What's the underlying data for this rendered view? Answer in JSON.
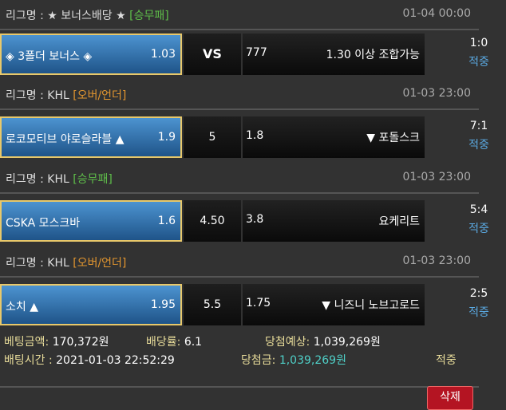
{
  "league_label": "리그명 :",
  "bets": [
    {
      "league": "★ 보너스배당 ★",
      "type": "[승무패]",
      "type_color": "green",
      "date": "01-04 00:00",
      "home": "◈ 3폴더 보너스 ◈",
      "home_odds": "1.03",
      "mid": "VS",
      "away_odds": "777",
      "away": "1.30 이상 조합가능",
      "score": "1:0",
      "result": "적중"
    },
    {
      "league": "KHL",
      "type": "[오버/언더]",
      "type_color": "orange",
      "date": "01-03 23:00",
      "home": "로코모티브 야로슬라블 ▲",
      "home_odds": "1.9",
      "mid": "5",
      "away_odds": "1.8",
      "away": "▼ 포돌스크",
      "score": "7:1",
      "result": "적중"
    },
    {
      "league": "KHL",
      "type": "[승무패]",
      "type_color": "green",
      "date": "01-03 23:00",
      "home": "CSKA 모스크바",
      "home_odds": "1.6",
      "mid": "4.50",
      "away_odds": "3.8",
      "away": "요케리트",
      "score": "5:4",
      "result": "적중"
    },
    {
      "league": "KHL",
      "type": "[오버/언더]",
      "type_color": "orange",
      "date": "01-03 23:00",
      "home": "소치 ▲",
      "home_odds": "1.95",
      "mid": "5.5",
      "away_odds": "1.75",
      "away": "▼ 니즈니 노브고로드",
      "score": "2:5",
      "result": "적중"
    }
  ],
  "summary": {
    "amount_label": "베팅금액:",
    "amount": "170,372원",
    "rate_label": "배당률:",
    "rate": "6.1",
    "expected_label": "당첨예상:",
    "expected": "1,039,269원",
    "time_label": "배팅시간 :",
    "time": "2021-01-03 22:52:29",
    "win_label": "당첨금:",
    "win": "1,039,269원",
    "status": "적중"
  },
  "delete_label": "삭제"
}
